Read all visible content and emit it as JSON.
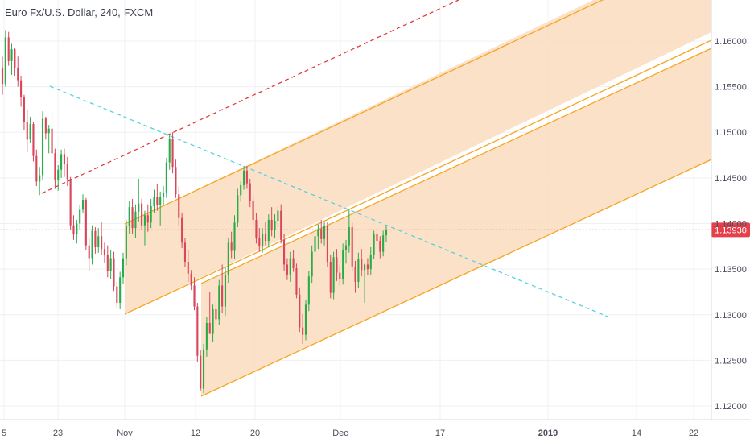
{
  "title": "Euro Fx/U.S. Dollar, 240, FXCM",
  "colors": {
    "up": "#2bab47",
    "down": "#d9455a",
    "channel_fill": "#fbdcc0",
    "channel_line": "#f5a623",
    "price_line": "#d9343f",
    "trend_dashed_cyan": "#57d2dc",
    "trend_dashed_red": "#e03a3a",
    "grid": "#eef0f3",
    "badge": "#e5404b"
  },
  "current_price_label": "1.13930",
  "chart_data": {
    "type": "candlestick",
    "title": "Euro Fx/U.S. Dollar, 240, FXCM",
    "ylim": [
      1.1185,
      1.1645
    ],
    "y_ticks": [
      "1.16000",
      "1.15500",
      "1.15000",
      "1.14500",
      "1.14000",
      "1.13500",
      "1.13000",
      "1.12500",
      "1.12000"
    ],
    "y_tick_values": [
      1.16,
      1.155,
      1.15,
      1.145,
      1.14,
      1.135,
      1.13,
      1.125,
      1.12
    ],
    "x_ticks": [
      "5",
      "23",
      "Nov",
      "12",
      "20",
      "Dec",
      "17",
      "2019",
      "14",
      "22"
    ],
    "current_price": 1.1393,
    "candles": [
      [
        1.1571,
        1.1583,
        1.1541,
        1.1553
      ],
      [
        1.1553,
        1.1612,
        1.155,
        1.1604
      ],
      [
        1.1604,
        1.161,
        1.1573,
        1.1578
      ],
      [
        1.1578,
        1.1597,
        1.1563,
        1.1591
      ],
      [
        1.1591,
        1.1592,
        1.1562,
        1.1571
      ],
      [
        1.1571,
        1.1583,
        1.155,
        1.1557
      ],
      [
        1.1557,
        1.1562,
        1.1528,
        1.1539
      ],
      [
        1.1539,
        1.1541,
        1.1502,
        1.1511
      ],
      [
        1.1511,
        1.1525,
        1.1478,
        1.1492
      ],
      [
        1.1492,
        1.1517,
        1.1488,
        1.1509
      ],
      [
        1.1509,
        1.1511,
        1.1468,
        1.1474
      ],
      [
        1.1474,
        1.1481,
        1.1441,
        1.1446
      ],
      [
        1.1446,
        1.1462,
        1.1431,
        1.1453
      ],
      [
        1.1453,
        1.1523,
        1.1448,
        1.1515
      ],
      [
        1.1515,
        1.1517,
        1.1492,
        1.1499
      ],
      [
        1.1499,
        1.1508,
        1.1477,
        1.1504
      ],
      [
        1.1504,
        1.1522,
        1.1472,
        1.1477
      ],
      [
        1.1477,
        1.1482,
        1.1438,
        1.1448
      ],
      [
        1.1448,
        1.1464,
        1.1436,
        1.1459
      ],
      [
        1.1459,
        1.1481,
        1.145,
        1.1476
      ],
      [
        1.1476,
        1.1482,
        1.1451,
        1.1465
      ],
      [
        1.1465,
        1.1473,
        1.1441,
        1.1449
      ],
      [
        1.1449,
        1.1451,
        1.1393,
        1.1398
      ],
      [
        1.1398,
        1.1409,
        1.1382,
        1.1388
      ],
      [
        1.1388,
        1.1404,
        1.1378,
        1.14
      ],
      [
        1.14,
        1.142,
        1.1393,
        1.1415
      ],
      [
        1.1415,
        1.1432,
        1.1411,
        1.1426
      ],
      [
        1.1426,
        1.1428,
        1.1371,
        1.1376
      ],
      [
        1.1376,
        1.1384,
        1.1348,
        1.1362
      ],
      [
        1.1362,
        1.1398,
        1.1355,
        1.1392
      ],
      [
        1.1392,
        1.1396,
        1.1367,
        1.1374
      ],
      [
        1.1374,
        1.1395,
        1.1368,
        1.1386
      ],
      [
        1.1386,
        1.1402,
        1.1366,
        1.1372
      ],
      [
        1.1372,
        1.1379,
        1.1357,
        1.1366
      ],
      [
        1.1366,
        1.1376,
        1.1341,
        1.1348
      ],
      [
        1.1348,
        1.1371,
        1.1339,
        1.1362
      ],
      [
        1.1362,
        1.1369,
        1.1326,
        1.1331
      ],
      [
        1.1331,
        1.1336,
        1.1308,
        1.1313
      ],
      [
        1.1313,
        1.1347,
        1.1306,
        1.1341
      ],
      [
        1.1341,
        1.1368,
        1.1334,
        1.1362
      ],
      [
        1.1362,
        1.1404,
        1.1354,
        1.1398
      ],
      [
        1.1398,
        1.1425,
        1.1389,
        1.1418
      ],
      [
        1.1418,
        1.1427,
        1.1388,
        1.1395
      ],
      [
        1.1395,
        1.1421,
        1.1384,
        1.1413
      ],
      [
        1.1413,
        1.1449,
        1.1402,
        1.1422
      ],
      [
        1.1422,
        1.1427,
        1.1393,
        1.1398
      ],
      [
        1.1398,
        1.1414,
        1.1376,
        1.1409
      ],
      [
        1.1409,
        1.1421,
        1.1391,
        1.1401
      ],
      [
        1.1401,
        1.1427,
        1.1395,
        1.1419
      ],
      [
        1.1419,
        1.1437,
        1.1412,
        1.1429
      ],
      [
        1.1429,
        1.1443,
        1.1414,
        1.142
      ],
      [
        1.142,
        1.1435,
        1.1398,
        1.1429
      ],
      [
        1.1429,
        1.1441,
        1.142,
        1.1434
      ],
      [
        1.1434,
        1.1472,
        1.1428,
        1.1467
      ],
      [
        1.1467,
        1.1498,
        1.1459,
        1.1493
      ],
      [
        1.1493,
        1.15,
        1.1455,
        1.1462
      ],
      [
        1.1462,
        1.147,
        1.1428,
        1.1432
      ],
      [
        1.1432,
        1.1441,
        1.1398,
        1.1406
      ],
      [
        1.1406,
        1.1412,
        1.1373,
        1.1379
      ],
      [
        1.1379,
        1.1384,
        1.1352,
        1.1358
      ],
      [
        1.1358,
        1.1371,
        1.1336,
        1.1345
      ],
      [
        1.1345,
        1.1349,
        1.1327,
        1.1332
      ],
      [
        1.1332,
        1.1341,
        1.1305,
        1.1309
      ],
      [
        1.1309,
        1.1313,
        1.1248,
        1.1255
      ],
      [
        1.1255,
        1.1261,
        1.1216,
        1.1219
      ],
      [
        1.1219,
        1.1268,
        1.1214,
        1.1262
      ],
      [
        1.1262,
        1.1298,
        1.1254,
        1.1291
      ],
      [
        1.1291,
        1.1325,
        1.1281,
        1.1279
      ],
      [
        1.1279,
        1.1311,
        1.127,
        1.1306
      ],
      [
        1.1306,
        1.1314,
        1.1288,
        1.1295
      ],
      [
        1.1295,
        1.1338,
        1.1289,
        1.1332
      ],
      [
        1.1332,
        1.1355,
        1.1302,
        1.1309
      ],
      [
        1.1309,
        1.1352,
        1.1299,
        1.1344
      ],
      [
        1.1344,
        1.1384,
        1.1335,
        1.1379
      ],
      [
        1.1379,
        1.1391,
        1.1362,
        1.137
      ],
      [
        1.137,
        1.1409,
        1.1361,
        1.1401
      ],
      [
        1.1401,
        1.1438,
        1.1396,
        1.1431
      ],
      [
        1.1431,
        1.1446,
        1.1424,
        1.1442
      ],
      [
        1.1442,
        1.1463,
        1.1437,
        1.1458
      ],
      [
        1.1458,
        1.1463,
        1.1438,
        1.1444
      ],
      [
        1.1444,
        1.1449,
        1.1418,
        1.1425
      ],
      [
        1.1425,
        1.1432,
        1.1398,
        1.1404
      ],
      [
        1.1404,
        1.1411,
        1.1378,
        1.1384
      ],
      [
        1.1384,
        1.1395,
        1.1369,
        1.1375
      ],
      [
        1.1375,
        1.1395,
        1.1368,
        1.1389
      ],
      [
        1.1389,
        1.1402,
        1.1376,
        1.1381
      ],
      [
        1.1381,
        1.141,
        1.1374,
        1.1404
      ],
      [
        1.1404,
        1.1418,
        1.1386,
        1.1393
      ],
      [
        1.1393,
        1.141,
        1.1384,
        1.1403
      ],
      [
        1.1403,
        1.1419,
        1.1396,
        1.1414
      ],
      [
        1.1414,
        1.1421,
        1.1378,
        1.1382
      ],
      [
        1.1382,
        1.1389,
        1.1348,
        1.1355
      ],
      [
        1.1355,
        1.1362,
        1.1338,
        1.1344
      ],
      [
        1.1344,
        1.1369,
        1.1336,
        1.1362
      ],
      [
        1.1362,
        1.1371,
        1.1347,
        1.1351
      ],
      [
        1.1351,
        1.1356,
        1.1318,
        1.1322
      ],
      [
        1.1322,
        1.133,
        1.1281,
        1.1286
      ],
      [
        1.1286,
        1.1301,
        1.1268,
        1.1278
      ],
      [
        1.1278,
        1.1316,
        1.1272,
        1.1311
      ],
      [
        1.1311,
        1.1348,
        1.1304,
        1.1342
      ],
      [
        1.1342,
        1.1376,
        1.1335,
        1.1369
      ],
      [
        1.1369,
        1.1392,
        1.1356,
        1.1386
      ],
      [
        1.1386,
        1.1399,
        1.1372,
        1.1394
      ],
      [
        1.1394,
        1.1404,
        1.1378,
        1.1383
      ],
      [
        1.1383,
        1.1401,
        1.1376,
        1.1397
      ],
      [
        1.1397,
        1.1402,
        1.1352,
        1.1358
      ],
      [
        1.1358,
        1.1366,
        1.1318,
        1.1324
      ],
      [
        1.1324,
        1.1369,
        1.1317,
        1.1363
      ],
      [
        1.1363,
        1.1372,
        1.1337,
        1.1346
      ],
      [
        1.1346,
        1.1354,
        1.1332,
        1.1339
      ],
      [
        1.1339,
        1.1378,
        1.1333,
        1.1371
      ],
      [
        1.1371,
        1.1382,
        1.1356,
        1.1376
      ],
      [
        1.1376,
        1.1415,
        1.1368,
        1.1396
      ],
      [
        1.1396,
        1.1401,
        1.1348,
        1.1353
      ],
      [
        1.1353,
        1.1359,
        1.1324,
        1.1336
      ],
      [
        1.1336,
        1.1368,
        1.1329,
        1.1361
      ],
      [
        1.1361,
        1.1372,
        1.1342,
        1.1349
      ],
      [
        1.1349,
        1.1356,
        1.1313,
        1.1355
      ],
      [
        1.1355,
        1.1362,
        1.1343,
        1.135
      ],
      [
        1.135,
        1.1374,
        1.1344,
        1.1366
      ],
      [
        1.1366,
        1.1392,
        1.1361,
        1.1389
      ],
      [
        1.1389,
        1.1396,
        1.1373,
        1.1381
      ],
      [
        1.1381,
        1.1386,
        1.1362,
        1.1369
      ],
      [
        1.1369,
        1.1392,
        1.1364,
        1.1387
      ],
      [
        1.1387,
        1.1398,
        1.138,
        1.1393
      ]
    ],
    "drawings": {
      "channel_upper": {
        "line1": [
          [
            1.1428,
            1.161
          ],
          [
            0,
            0
          ]
        ],
        "note": "parallel channel band"
      }
    }
  }
}
